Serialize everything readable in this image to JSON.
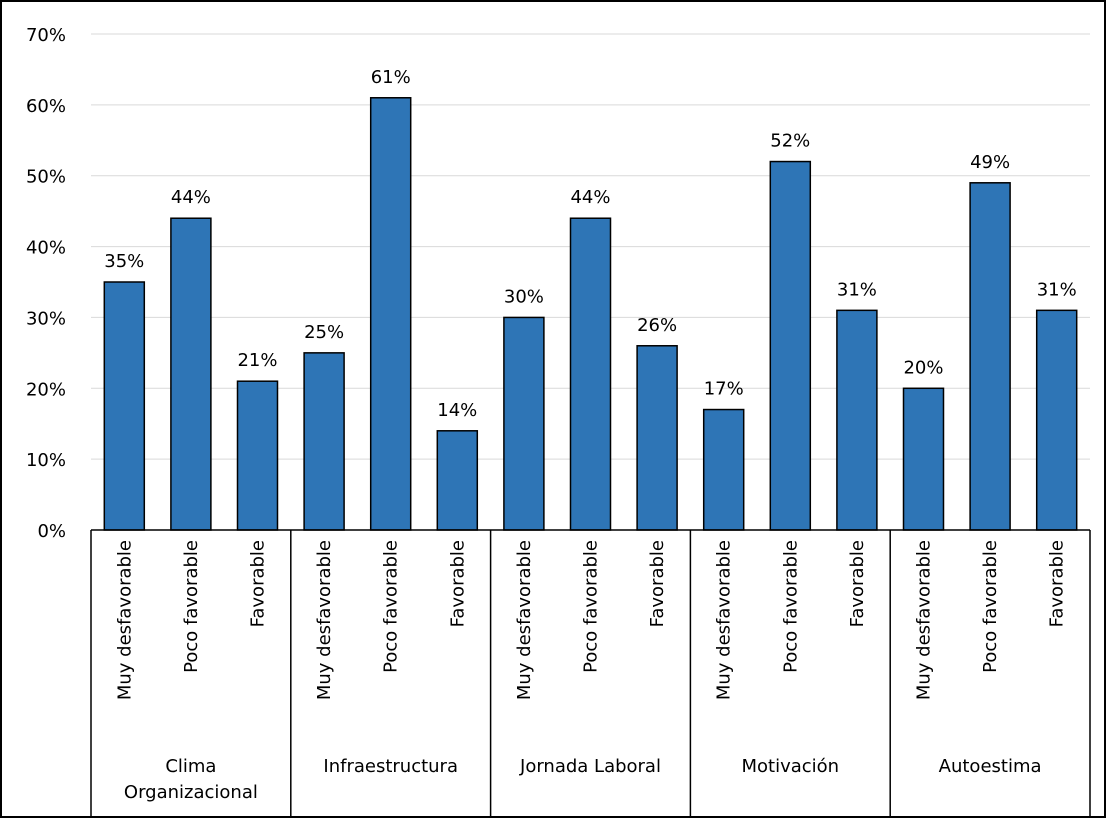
{
  "chart_data": {
    "type": "bar",
    "groups": [
      "Clima Organizacional",
      "Infraestructura",
      "Jornada Laboral",
      "Motivación",
      "Autoestima"
    ],
    "categories": [
      "Muy desfavorable",
      "Poco favorable",
      "Favorable"
    ],
    "values": [
      [
        35,
        44,
        21
      ],
      [
        25,
        61,
        14
      ],
      [
        30,
        44,
        26
      ],
      [
        17,
        52,
        31
      ],
      [
        20,
        49,
        31
      ]
    ],
    "data_labels": [
      [
        "35%",
        "44%",
        "21%"
      ],
      [
        "25%",
        "61%",
        "14%"
      ],
      [
        "30%",
        "44%",
        "26%"
      ],
      [
        "17%",
        "52%",
        "31%"
      ],
      [
        "20%",
        "49%",
        "31%"
      ]
    ],
    "y_ticks": [
      "0%",
      "10%",
      "20%",
      "30%",
      "40%",
      "50%",
      "60%",
      "70%"
    ],
    "ylim": [
      0,
      70
    ],
    "grid": true,
    "bar_color": "#2E75B6",
    "title": "",
    "xlabel": "",
    "ylabel": ""
  }
}
